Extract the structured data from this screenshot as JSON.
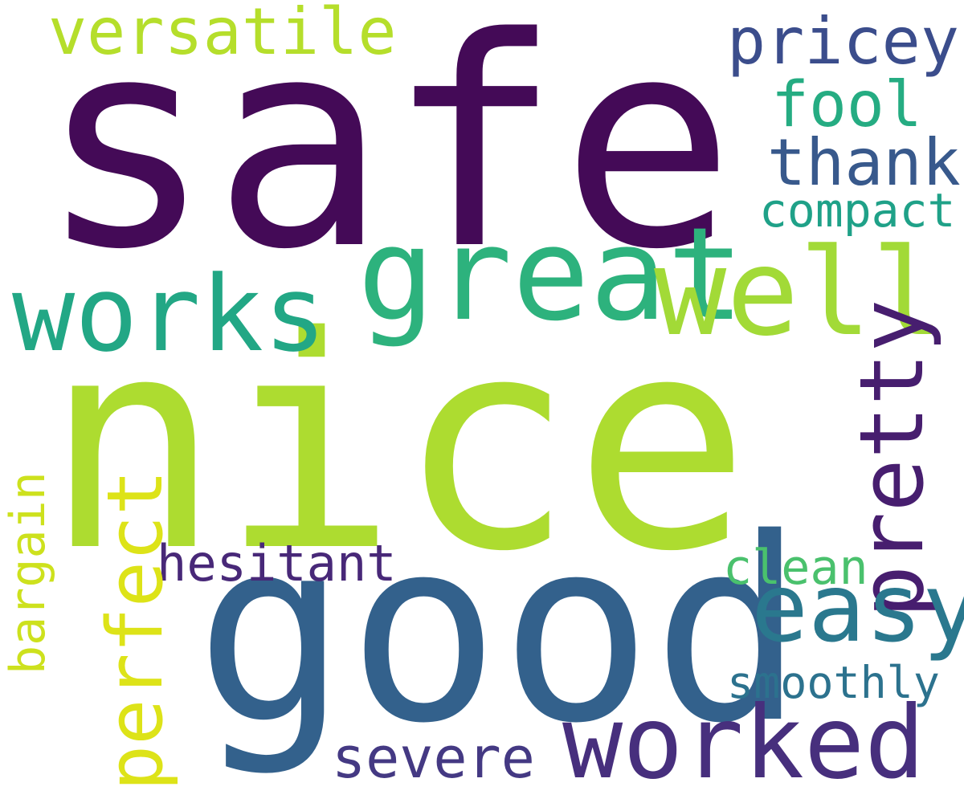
{
  "words": {
    "safe": {
      "text": "safe",
      "color": "#440a57"
    },
    "nice": {
      "text": "nice",
      "color": "#addc30"
    },
    "good": {
      "text": "good",
      "color": "#33618c"
    },
    "great": {
      "text": "great",
      "color": "#2db27d"
    },
    "well": {
      "text": "well",
      "color": "#a2da37"
    },
    "works": {
      "text": "works",
      "color": "#22a785"
    },
    "worked": {
      "text": "worked",
      "color": "#472f7d"
    },
    "versatile": {
      "text": "versatile",
      "color": "#b5de2b"
    },
    "pricey": {
      "text": "pricey",
      "color": "#3b4d8c"
    },
    "fool": {
      "text": "fool",
      "color": "#25ac82"
    },
    "thank": {
      "text": "thank",
      "color": "#38598c"
    },
    "compact": {
      "text": "compact",
      "color": "#1fa188"
    },
    "pretty": {
      "text": "pretty",
      "color": "#471e6f"
    },
    "easy": {
      "text": "easy",
      "color": "#2a788e"
    },
    "hesitant": {
      "text": "hesitant",
      "color": "#482878"
    },
    "clean": {
      "text": "clean",
      "color": "#4ac16d"
    },
    "perfect": {
      "text": "perfect",
      "color": "#dde318"
    },
    "bargain": {
      "text": "bargain",
      "color": "#cde11d"
    },
    "smoothly": {
      "text": "smoothly",
      "color": "#2c728e"
    },
    "severe": {
      "text": "severe",
      "color": "#443983"
    }
  }
}
